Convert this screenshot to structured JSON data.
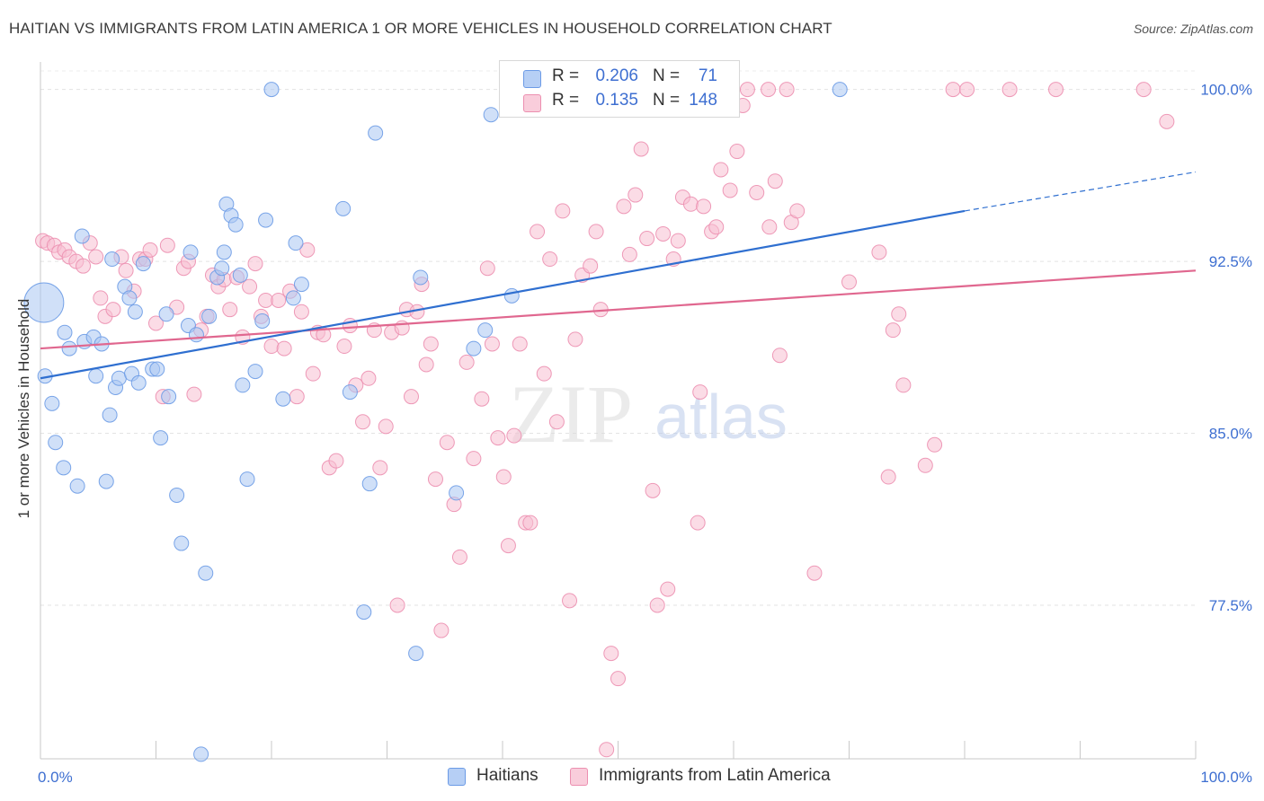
{
  "title": "HAITIAN VS IMMIGRANTS FROM LATIN AMERICA 1 OR MORE VEHICLES IN HOUSEHOLD CORRELATION CHART",
  "source": "Source: ZipAtlas.com",
  "watermark": {
    "zip": "ZIP",
    "atlas": "atlas"
  },
  "colors": {
    "blue_fill": "#a9c6f3",
    "blue_stroke": "#6c9be6",
    "blue_line": "#2f6fd0",
    "pink_fill": "#f7bfd1",
    "pink_stroke": "#ec8fb0",
    "pink_line": "#e0678f",
    "tick_text": "#3e6fd1",
    "grid": "#e3e3e3"
  },
  "legend_top": {
    "rows": [
      {
        "r_label": "R =",
        "r_value": "0.206",
        "n_label": "N =",
        "n_value": "71",
        "swatch": "blue"
      },
      {
        "r_label": "R =",
        "r_value": "0.135",
        "n_label": "N =",
        "n_value": "148",
        "swatch": "pink"
      }
    ]
  },
  "legend_bottom": [
    {
      "label": "Haitians",
      "swatch": "blue"
    },
    {
      "label": "Immigrants from Latin America",
      "swatch": "pink"
    }
  ],
  "chart_data": {
    "type": "scatter",
    "title": "HAITIAN VS IMMIGRANTS FROM LATIN AMERICA 1 OR MORE VEHICLES IN HOUSEHOLD CORRELATION CHART",
    "xlabel": "",
    "ylabel": "1 or more Vehicles in Household",
    "xlim": [
      0,
      100
    ],
    "ylim": [
      70.8,
      101.2
    ],
    "x_tick_labels": [
      "0.0%",
      "100.0%"
    ],
    "y_ticks": [
      77.5,
      85.0,
      92.5,
      100.0
    ],
    "y_tick_labels": [
      "77.5%",
      "85.0%",
      "92.5%",
      "100.0%"
    ],
    "grid": true,
    "legend_position": "top-center",
    "series": [
      {
        "name": "Haitians",
        "color": "blue",
        "R": 0.206,
        "N": 71,
        "trend": {
          "x": [
            0,
            80
          ],
          "y": [
            87.4,
            94.7
          ],
          "dashed_to": [
            100,
            96.4
          ]
        },
        "points": [
          [
            0.3,
            90.7
          ],
          [
            0.4,
            87.5
          ],
          [
            1.0,
            86.3
          ],
          [
            1.3,
            84.6
          ],
          [
            2.0,
            83.5
          ],
          [
            2.1,
            89.4
          ],
          [
            2.5,
            88.7
          ],
          [
            3.2,
            82.7
          ],
          [
            3.6,
            93.6
          ],
          [
            3.8,
            89.0
          ],
          [
            4.6,
            89.2
          ],
          [
            4.8,
            87.5
          ],
          [
            5.3,
            88.9
          ],
          [
            5.7,
            82.9
          ],
          [
            6.0,
            85.8
          ],
          [
            6.2,
            92.6
          ],
          [
            6.5,
            87.0
          ],
          [
            6.8,
            87.4
          ],
          [
            7.3,
            91.4
          ],
          [
            7.7,
            90.9
          ],
          [
            7.9,
            87.6
          ],
          [
            8.2,
            90.3
          ],
          [
            8.5,
            87.2
          ],
          [
            8.9,
            92.4
          ],
          [
            9.7,
            87.8
          ],
          [
            10.1,
            87.8
          ],
          [
            10.4,
            84.8
          ],
          [
            10.9,
            90.2
          ],
          [
            11.1,
            86.6
          ],
          [
            11.8,
            82.3
          ],
          [
            12.2,
            80.2
          ],
          [
            12.8,
            89.7
          ],
          [
            13.0,
            92.9
          ],
          [
            13.5,
            89.3
          ],
          [
            13.9,
            71.0
          ],
          [
            14.3,
            78.9
          ],
          [
            14.6,
            90.1
          ],
          [
            15.3,
            91.8
          ],
          [
            15.7,
            92.2
          ],
          [
            15.9,
            92.9
          ],
          [
            16.1,
            95.0
          ],
          [
            16.5,
            94.5
          ],
          [
            16.9,
            94.1
          ],
          [
            17.3,
            91.9
          ],
          [
            17.5,
            87.1
          ],
          [
            17.9,
            83.0
          ],
          [
            18.6,
            87.7
          ],
          [
            19.2,
            89.9
          ],
          [
            19.5,
            94.3
          ],
          [
            20.0,
            100.0
          ],
          [
            21.0,
            86.5
          ],
          [
            21.9,
            90.9
          ],
          [
            22.1,
            93.3
          ],
          [
            22.6,
            91.5
          ],
          [
            26.2,
            94.8
          ],
          [
            26.8,
            86.8
          ],
          [
            28.0,
            77.2
          ],
          [
            28.5,
            82.8
          ],
          [
            29.0,
            98.1
          ],
          [
            32.5,
            75.4
          ],
          [
            32.9,
            91.8
          ],
          [
            36.0,
            82.4
          ],
          [
            37.5,
            88.7
          ],
          [
            38.5,
            89.5
          ],
          [
            39.0,
            98.9
          ],
          [
            40.8,
            91.0
          ],
          [
            69.2,
            100.0
          ]
        ]
      },
      {
        "name": "Immigrants from Latin America",
        "color": "pink",
        "R": 0.135,
        "N": 148,
        "trend": {
          "x": [
            0,
            100
          ],
          "y": [
            88.7,
            92.1
          ]
        },
        "points": [
          [
            0.2,
            93.4
          ],
          [
            0.6,
            93.3
          ],
          [
            1.2,
            93.2
          ],
          [
            1.6,
            92.9
          ],
          [
            2.1,
            93.0
          ],
          [
            2.5,
            92.7
          ],
          [
            3.1,
            92.5
          ],
          [
            3.7,
            92.3
          ],
          [
            4.3,
            93.3
          ],
          [
            4.8,
            92.7
          ],
          [
            5.2,
            90.9
          ],
          [
            5.6,
            90.1
          ],
          [
            6.3,
            90.4
          ],
          [
            7.0,
            92.7
          ],
          [
            7.4,
            92.1
          ],
          [
            8.1,
            91.2
          ],
          [
            8.6,
            92.6
          ],
          [
            9.1,
            92.6
          ],
          [
            9.5,
            93.0
          ],
          [
            10.0,
            89.8
          ],
          [
            10.6,
            86.6
          ],
          [
            11.0,
            93.2
          ],
          [
            11.8,
            90.5
          ],
          [
            12.4,
            92.2
          ],
          [
            12.8,
            92.5
          ],
          [
            13.3,
            86.7
          ],
          [
            13.9,
            89.5
          ],
          [
            14.4,
            90.1
          ],
          [
            14.9,
            91.9
          ],
          [
            15.4,
            91.4
          ],
          [
            15.9,
            91.7
          ],
          [
            16.4,
            90.4
          ],
          [
            17.0,
            91.8
          ],
          [
            17.5,
            89.2
          ],
          [
            18.1,
            91.4
          ],
          [
            18.6,
            92.4
          ],
          [
            19.1,
            90.1
          ],
          [
            19.5,
            90.8
          ],
          [
            20.0,
            88.8
          ],
          [
            20.6,
            90.8
          ],
          [
            21.1,
            88.7
          ],
          [
            21.6,
            91.2
          ],
          [
            22.2,
            86.6
          ],
          [
            22.6,
            90.3
          ],
          [
            23.1,
            93.0
          ],
          [
            23.6,
            87.6
          ],
          [
            24.0,
            89.4
          ],
          [
            24.5,
            89.3
          ],
          [
            25.0,
            83.5
          ],
          [
            25.6,
            83.8
          ],
          [
            26.3,
            88.8
          ],
          [
            26.8,
            89.7
          ],
          [
            27.3,
            87.1
          ],
          [
            27.9,
            85.5
          ],
          [
            28.4,
            87.4
          ],
          [
            28.9,
            89.5
          ],
          [
            29.4,
            83.5
          ],
          [
            29.9,
            85.3
          ],
          [
            30.4,
            89.4
          ],
          [
            30.9,
            77.5
          ],
          [
            31.3,
            89.6
          ],
          [
            31.7,
            90.4
          ],
          [
            32.1,
            86.6
          ],
          [
            32.6,
            90.3
          ],
          [
            33.0,
            91.5
          ],
          [
            33.4,
            88.0
          ],
          [
            33.8,
            88.9
          ],
          [
            34.2,
            83.0
          ],
          [
            34.7,
            76.4
          ],
          [
            35.2,
            84.6
          ],
          [
            35.8,
            81.9
          ],
          [
            36.3,
            79.6
          ],
          [
            36.9,
            88.1
          ],
          [
            37.5,
            83.9
          ],
          [
            38.2,
            86.5
          ],
          [
            38.7,
            92.2
          ],
          [
            39.1,
            88.9
          ],
          [
            39.6,
            84.8
          ],
          [
            40.1,
            83.1
          ],
          [
            40.5,
            80.1
          ],
          [
            41.0,
            84.9
          ],
          [
            41.5,
            88.9
          ],
          [
            42.0,
            81.1
          ],
          [
            42.4,
            81.1
          ],
          [
            43.0,
            93.8
          ],
          [
            43.6,
            87.6
          ],
          [
            44.1,
            92.6
          ],
          [
            44.7,
            85.5
          ],
          [
            45.2,
            94.7
          ],
          [
            45.8,
            77.7
          ],
          [
            46.3,
            89.1
          ],
          [
            46.9,
            91.9
          ],
          [
            47.6,
            92.3
          ],
          [
            48.1,
            93.8
          ],
          [
            48.5,
            90.4
          ],
          [
            49.0,
            71.2
          ],
          [
            49.4,
            75.4
          ],
          [
            50.0,
            74.3
          ],
          [
            50.5,
            94.9
          ],
          [
            51.0,
            92.8
          ],
          [
            51.5,
            95.4
          ],
          [
            52.0,
            97.4
          ],
          [
            52.5,
            93.5
          ],
          [
            53.0,
            82.5
          ],
          [
            53.4,
            77.5
          ],
          [
            53.9,
            93.7
          ],
          [
            54.3,
            78.2
          ],
          [
            54.8,
            92.6
          ],
          [
            55.2,
            93.4
          ],
          [
            55.6,
            95.3
          ],
          [
            56.3,
            95.0
          ],
          [
            56.9,
            81.1
          ],
          [
            57.1,
            86.8
          ],
          [
            57.4,
            94.9
          ],
          [
            58.1,
            93.8
          ],
          [
            58.5,
            94.0
          ],
          [
            58.9,
            96.5
          ],
          [
            59.7,
            95.6
          ],
          [
            60.3,
            97.3
          ],
          [
            60.8,
            99.3
          ],
          [
            61.2,
            100.0
          ],
          [
            62.0,
            95.5
          ],
          [
            63.0,
            100.0
          ],
          [
            63.1,
            94.0
          ],
          [
            63.6,
            96.0
          ],
          [
            64.0,
            88.4
          ],
          [
            64.6,
            100.0
          ],
          [
            65.0,
            94.2
          ],
          [
            65.5,
            94.7
          ],
          [
            67.0,
            78.9
          ],
          [
            70.0,
            91.6
          ],
          [
            72.6,
            92.9
          ],
          [
            73.4,
            83.1
          ],
          [
            73.8,
            89.5
          ],
          [
            74.3,
            90.2
          ],
          [
            74.7,
            87.1
          ],
          [
            76.6,
            83.6
          ],
          [
            77.4,
            84.5
          ],
          [
            79.0,
            100.0
          ],
          [
            80.2,
            100.0
          ],
          [
            83.9,
            100.0
          ],
          [
            87.9,
            100.0
          ],
          [
            95.5,
            100.0
          ],
          [
            97.5,
            98.6
          ]
        ]
      }
    ]
  }
}
